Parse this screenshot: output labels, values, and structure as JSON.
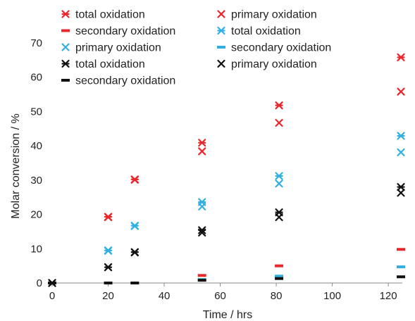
{
  "chart_data": {
    "type": "scatter",
    "title": "",
    "xlabel": "Time / hrs",
    "ylabel": "Molar conversion / %",
    "xlim": [
      0,
      125
    ],
    "ylim": [
      0,
      70
    ],
    "xticks": [
      "0",
      "20",
      "40",
      "60",
      "80",
      "100",
      "120"
    ],
    "yticks": [
      "0",
      "10",
      "20",
      "30",
      "40",
      "50",
      "60",
      "70"
    ],
    "grid": false,
    "legend_position": "top",
    "series": [
      {
        "name": "total oxidation",
        "color": "#e8262b",
        "marker": "asterisk",
        "points": [
          [
            0,
            0
          ],
          [
            20,
            19.3
          ],
          [
            29.5,
            30.2
          ],
          [
            53.5,
            40.9
          ],
          [
            81,
            51.8
          ],
          [
            124.5,
            65.8
          ]
        ]
      },
      {
        "name": "primary oxidation",
        "color": "#e8262b",
        "marker": "x",
        "points": [
          [
            0,
            0
          ],
          [
            20,
            19.2
          ],
          [
            29.5,
            30.1
          ],
          [
            53.5,
            38.4
          ],
          [
            81,
            46.7
          ],
          [
            124.5,
            55.8
          ]
        ]
      },
      {
        "name": "secondary oxidation",
        "color": "#e8262b",
        "marker": "dash",
        "points": [
          [
            0,
            0
          ],
          [
            20,
            0
          ],
          [
            29.5,
            0
          ],
          [
            53.5,
            2.2
          ],
          [
            81,
            5
          ],
          [
            124.5,
            9.8
          ]
        ]
      },
      {
        "name": "total oxidation",
        "color": "#30afe0",
        "marker": "asterisk",
        "points": [
          [
            0,
            0
          ],
          [
            20,
            9.5
          ],
          [
            29.5,
            16.7
          ],
          [
            53.5,
            23.6
          ],
          [
            81,
            31.2
          ],
          [
            124.5,
            42.9
          ]
        ]
      },
      {
        "name": "primary oxidation",
        "color": "#30afe0",
        "marker": "x",
        "points": [
          [
            0,
            0
          ],
          [
            20,
            9.4
          ],
          [
            29.5,
            16.6
          ],
          [
            53.5,
            22.3
          ],
          [
            81,
            29
          ],
          [
            124.5,
            38.1
          ]
        ]
      },
      {
        "name": "secondary oxidation",
        "color": "#30afe0",
        "marker": "dash",
        "points": [
          [
            0,
            0
          ],
          [
            20,
            0
          ],
          [
            29.5,
            0
          ],
          [
            53.5,
            1
          ],
          [
            81,
            2
          ],
          [
            124.5,
            4.7
          ]
        ]
      },
      {
        "name": "total oxidation",
        "color": "#111111",
        "marker": "asterisk",
        "points": [
          [
            0,
            0
          ],
          [
            20,
            4.6
          ],
          [
            29.5,
            9
          ],
          [
            53.5,
            15.4
          ],
          [
            81,
            20.6
          ],
          [
            124.5,
            28
          ]
        ]
      },
      {
        "name": "primary oxidation",
        "color": "#111111",
        "marker": "x",
        "points": [
          [
            0,
            0
          ],
          [
            20,
            4.6
          ],
          [
            29.5,
            8.9
          ],
          [
            53.5,
            14.7
          ],
          [
            81,
            19.2
          ],
          [
            124.5,
            26.3
          ]
        ]
      },
      {
        "name": "secondary oxidation",
        "color": "#111111",
        "marker": "dash",
        "points": [
          [
            0,
            0
          ],
          [
            20,
            0
          ],
          [
            29.5,
            0
          ],
          [
            53.5,
            0.8
          ],
          [
            81,
            1.3
          ],
          [
            124.5,
            1.8
          ]
        ]
      }
    ]
  }
}
